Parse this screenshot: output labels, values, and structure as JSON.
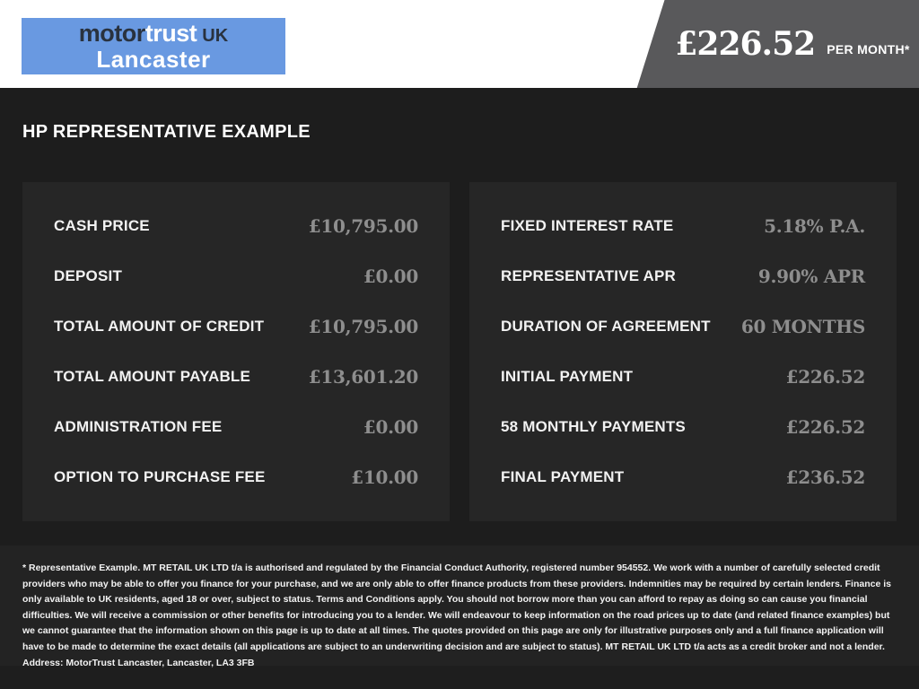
{
  "header": {
    "logo": {
      "brand_part1": "motor",
      "brand_part2": "trust",
      "brand_part3": "UK",
      "location": "Lancaster"
    },
    "price_banner": {
      "amount": "£226.52",
      "period": "PER MONTH*"
    }
  },
  "main": {
    "title": "HP REPRESENTATIVE EXAMPLE",
    "left_panel": {
      "rows": [
        {
          "label": "CASH PRICE",
          "value": "£10,795.00"
        },
        {
          "label": "DEPOSIT",
          "value": "£0.00"
        },
        {
          "label": "TOTAL AMOUNT OF CREDIT",
          "value": "£10,795.00"
        },
        {
          "label": "TOTAL AMOUNT PAYABLE",
          "value": "£13,601.20"
        },
        {
          "label": "ADMINISTRATION FEE",
          "value": "£0.00"
        },
        {
          "label": "OPTION TO PURCHASE FEE",
          "value": "£10.00"
        }
      ]
    },
    "right_panel": {
      "rows": [
        {
          "label": "FIXED INTEREST RATE",
          "value": "5.18% P.A."
        },
        {
          "label": "REPRESENTATIVE APR",
          "value": "9.90% APR"
        },
        {
          "label": "DURATION OF AGREEMENT",
          "value": "60 MONTHS"
        },
        {
          "label": "INITIAL PAYMENT",
          "value": "£226.52"
        },
        {
          "label": "58 MONTHLY PAYMENTS",
          "value": "£226.52"
        },
        {
          "label": "FINAL PAYMENT",
          "value": "£236.52"
        }
      ]
    }
  },
  "footnote": {
    "text": "* Representative Example. MT RETAIL UK LTD t/a is authorised and regulated by the Financial Conduct Authority, registered number 954552. We work with a number of carefully selected credit providers who may be able to offer you finance for your purchase, and we are only able to offer finance products from these providers. Indemnities may be required by certain lenders. Finance is only available to UK residents, aged 18 or over, subject to status. Terms and Conditions apply. You should not borrow more than you can afford to repay as doing so can cause you financial difficulties. We will receive a commission or other benefits for introducing you to a lender. We will endeavour to keep information on the road prices up to date (and related finance examples) but we cannot guarantee that the information shown on this page is up to date at all times. The quotes provided on this page are only for illustrative purposes only and a full finance application will have to be made to determine the exact details (all applications are subject to an underwriting decision and are subject to status). MT RETAIL UK LTD t/a acts as a credit broker and not a lender. Address: MotorTrust Lancaster, Lancaster, LA3 3FB"
  },
  "colors": {
    "logo_blue": "#6999e1",
    "logo_navy": "#29323f",
    "banner_gray": "#59595b",
    "page_bg": "#1d1d1d",
    "panel_bg": "#262626",
    "label_text": "#f2f2f2",
    "value_text": "#8e8e8e",
    "footnote_bg": "#232323"
  }
}
